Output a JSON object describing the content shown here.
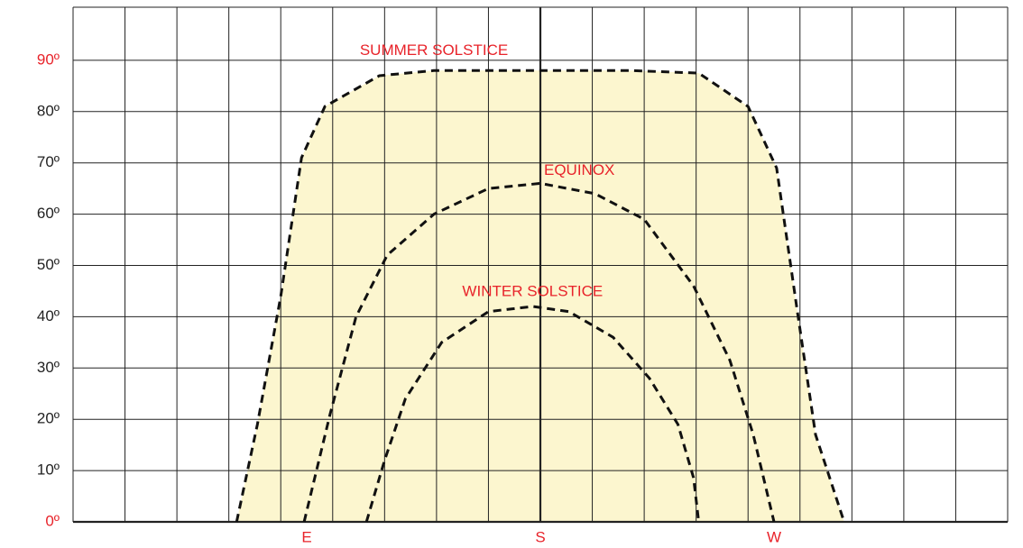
{
  "chart_data": {
    "type": "line",
    "xlim": [
      0,
      360
    ],
    "ylim": [
      0,
      100
    ],
    "xgrid": [
      0,
      20,
      40,
      60,
      80,
      100,
      120,
      140,
      160,
      180,
      200,
      220,
      240,
      260,
      280,
      300,
      320,
      340,
      360
    ],
    "xticks": [
      {
        "value": 90,
        "label": "E"
      },
      {
        "value": 180,
        "label": "S"
      },
      {
        "value": 270,
        "label": "W"
      }
    ],
    "yticks": [
      {
        "value": 0,
        "label": "0º",
        "color": "#e8232a"
      },
      {
        "value": 10,
        "label": "10º",
        "color": "#222222"
      },
      {
        "value": 20,
        "label": "20º",
        "color": "#222222"
      },
      {
        "value": 30,
        "label": "30º",
        "color": "#222222"
      },
      {
        "value": 40,
        "label": "40º",
        "color": "#222222"
      },
      {
        "value": 50,
        "label": "50º",
        "color": "#222222"
      },
      {
        "value": 60,
        "label": "60º",
        "color": "#222222"
      },
      {
        "value": 70,
        "label": "70º",
        "color": "#222222"
      },
      {
        "value": 80,
        "label": "80º",
        "color": "#222222"
      },
      {
        "value": 90,
        "label": "90º",
        "color": "#e8232a"
      }
    ],
    "grid": true,
    "area_color": "#fcf6cf",
    "label_color": "#e8232a",
    "line_color": "#111111",
    "series": [
      {
        "name": "SUMMER SOLSTICE",
        "x": [
          63,
          71,
          80,
          88,
          97,
          118,
          139,
          180,
          215,
          241,
          260,
          271,
          279,
          286,
          297
        ],
        "values": [
          0,
          19,
          44,
          71,
          81,
          87,
          88,
          88,
          88,
          87.5,
          81,
          69,
          41,
          17,
          0
        ],
        "fill": true
      },
      {
        "name": "EQUINOX",
        "x": [
          89,
          99,
          109,
          121,
          139,
          160,
          180,
          201,
          220,
          239,
          253,
          262,
          270
        ],
        "values": [
          0,
          21,
          40,
          52,
          60,
          65,
          66,
          64,
          59,
          46,
          31.5,
          17,
          0
        ],
        "fill": false
      },
      {
        "name": "WINTER SOLSTICE",
        "x": [
          113,
          120,
          128,
          142,
          160,
          177,
          191,
          208,
          222,
          233,
          239,
          241
        ],
        "values": [
          0,
          12,
          24,
          35,
          41,
          42,
          41,
          36,
          28,
          19,
          8.6,
          0
        ],
        "fill": false
      }
    ]
  }
}
